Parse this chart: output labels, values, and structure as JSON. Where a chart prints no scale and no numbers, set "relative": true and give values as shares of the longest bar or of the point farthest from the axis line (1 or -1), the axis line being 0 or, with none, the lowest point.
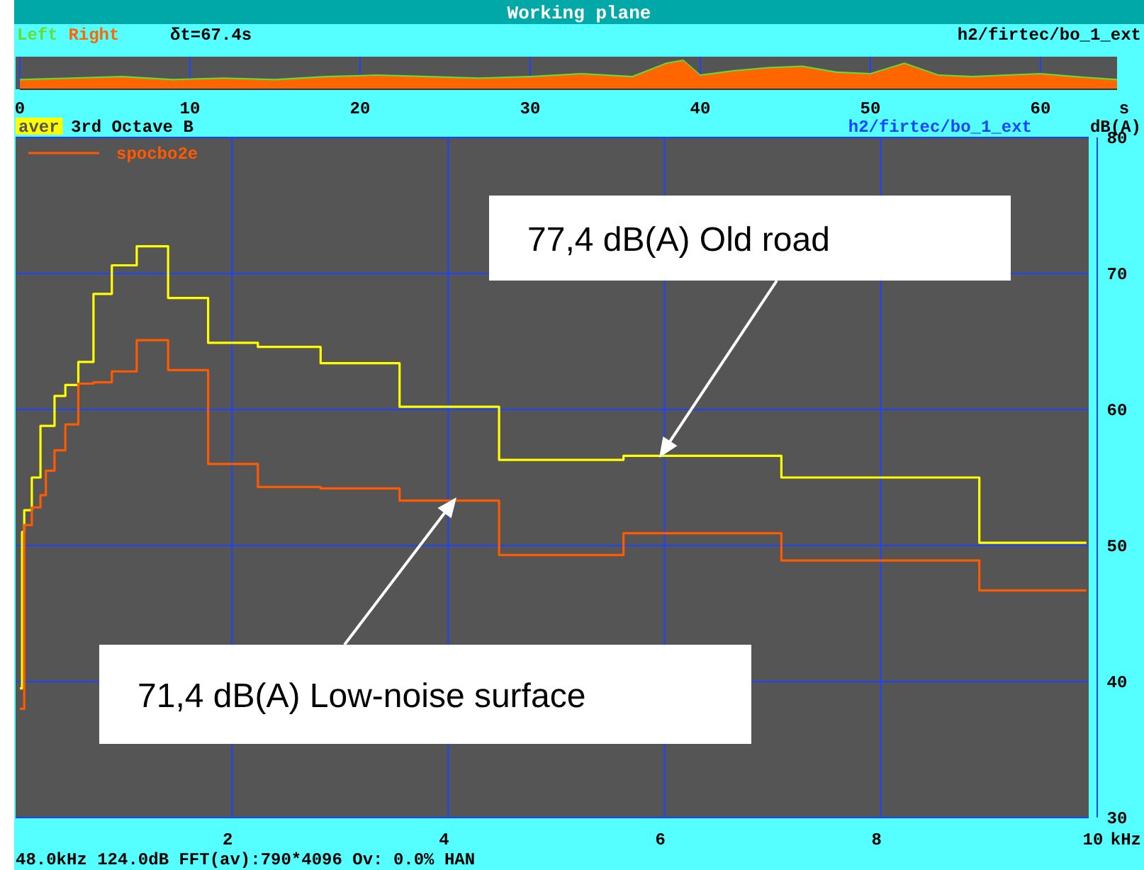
{
  "chart_data": [
    {
      "type": "area",
      "title": "Working plane",
      "xlabel": "s",
      "relative": true,
      "xlim": [
        0,
        64.5
      ],
      "xticks": [
        0,
        10,
        20,
        30,
        40,
        50,
        60
      ],
      "grid": "x",
      "legend": "top left",
      "annotations": [
        "δt=67.4s",
        "h2/firtec/bo_1_ext"
      ],
      "series": [
        {
          "name": "Left",
          "color": "#66dd33",
          "x": [
            0,
            3,
            6,
            9,
            12,
            15,
            18,
            21,
            24,
            27,
            30,
            33,
            36,
            38,
            39,
            40,
            42,
            44,
            46,
            48,
            50,
            52,
            54,
            56,
            58,
            60,
            62,
            64.5
          ],
          "values": [
            0.35,
            0.4,
            0.45,
            0.35,
            0.4,
            0.35,
            0.45,
            0.5,
            0.45,
            0.4,
            0.45,
            0.55,
            0.45,
            0.9,
            1,
            0.5,
            0.65,
            0.75,
            0.8,
            0.6,
            0.55,
            0.9,
            0.5,
            0.45,
            0.5,
            0.55,
            0.45,
            0.35
          ]
        },
        {
          "name": "Right",
          "color": "#ff6600",
          "x": [
            0,
            3,
            6,
            9,
            12,
            15,
            18,
            21,
            24,
            27,
            30,
            33,
            36,
            38,
            39,
            40,
            42,
            44,
            46,
            48,
            50,
            52,
            54,
            56,
            58,
            60,
            62,
            64.5
          ],
          "values": [
            0.3,
            0.35,
            0.4,
            0.3,
            0.35,
            0.3,
            0.4,
            0.45,
            0.4,
            0.35,
            0.4,
            0.5,
            0.4,
            0.85,
            0.95,
            0.45,
            0.6,
            0.7,
            0.75,
            0.55,
            0.5,
            0.85,
            0.45,
            0.4,
            0.45,
            0.5,
            0.4,
            0.3
          ]
        }
      ]
    },
    {
      "type": "step",
      "subtitle": "3rd Octave B",
      "xlabel": "kHz",
      "ylabel": "dB(A)",
      "xlim": [
        0,
        10
      ],
      "ylim": [
        30,
        80
      ],
      "xticks": [
        2,
        4,
        6,
        8,
        10
      ],
      "yticks": [
        30,
        40,
        50,
        60,
        70,
        80
      ],
      "grid": true,
      "legend": "top left",
      "annotations": [
        "h2/firtec/bo_1_ext",
        "77,4 dB(A) Old road",
        "71,4 dB(A) Low-noise surface",
        "48.0kHz 124.0dB FFT(av):790*4096 Ov: 0.0% HAN"
      ],
      "series": [
        {
          "name": "aver",
          "color": "#ffff00",
          "x": [
            0.04,
            0.06,
            0.08,
            0.15,
            0.23,
            0.36,
            0.46,
            0.58,
            0.72,
            0.89,
            1.12,
            1.41,
            1.78,
            2.24,
            2.82,
            3.55,
            4.47,
            5.62,
            7.08,
            8.91,
            9.9
          ],
          "values": [
            39.5,
            51,
            52.6,
            55.0,
            58.8,
            61.0,
            61.8,
            63.5,
            68.5,
            70.6,
            72.0,
            68.2,
            64.9,
            64.6,
            63.4,
            60.2,
            56.3,
            56.6,
            55.0,
            50.2,
            50.2
          ]
        },
        {
          "name": "spocbo2e",
          "color": "#ff5a00",
          "x": [
            0.04,
            0.08,
            0.15,
            0.23,
            0.28,
            0.36,
            0.46,
            0.58,
            0.72,
            0.89,
            1.12,
            1.41,
            1.78,
            2.24,
            2.82,
            3.55,
            4.47,
            5.62,
            7.08,
            8.91,
            9.9
          ],
          "values": [
            38,
            51.5,
            52.8,
            53.7,
            55.5,
            57.0,
            58.9,
            61.9,
            62.0,
            62.8,
            65.1,
            62.9,
            56.0,
            54.3,
            54.2,
            53.3,
            49.3,
            50.9,
            48.9,
            46.7,
            46.7
          ]
        }
      ]
    }
  ]
}
